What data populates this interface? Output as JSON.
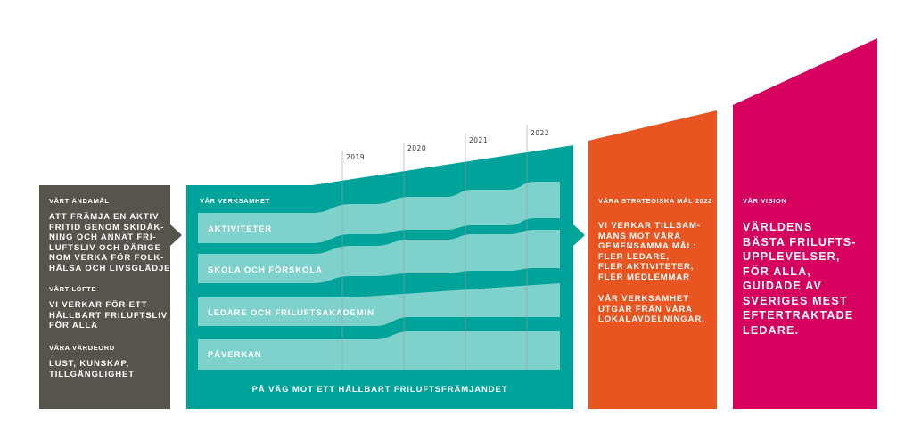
{
  "colors": {
    "dark": "#57544d",
    "teal": "#00a39a",
    "lane": "#7fd2cc",
    "orange": "#e85520",
    "magenta": "#d6005f"
  },
  "andamal": {
    "heading": "VÅRT ÄNDAMÅL",
    "text": "ATT FRÄMJA EN AKTIV\nFRITID GENOM SKIDÅK-\nNING OCH ANNAT FRI-\nLUFTSLIV OCH DÄRIGE-\nNOM VERKA FÖR FOLK-\nHÄLSA OCH LIVSGLÄDJE",
    "lofte_heading": "VÅRT LÖFTE",
    "lofte_text": "VI VERKAR FÖR ETT\nHÅLLBART FRILUFTSLIV\nFÖR ALLA",
    "vardeord_heading": "VÅRA VÄRDEORD",
    "vardeord_text": "LUST, KUNSKAP,\nTILLGÄNGLIGHET"
  },
  "verksamhet": {
    "heading": "VÅR VERKSAMHET",
    "lanes": [
      "AKTIVITETER",
      "SKOLA OCH FÖRSKOLA",
      "LEDARE OCH FRILUFTSAKADEMIN",
      "PÅVERKAN"
    ],
    "footer": "PÅ VÄG MOT ETT HÅLLBART FRILUFTSFRÄMJANDET",
    "years": [
      "2019",
      "2020",
      "2021",
      "2022"
    ]
  },
  "mal": {
    "heading": "VÅRA STRATEGISKA MÅL 2022",
    "text1": "VI VERKAR TILLSAM-\nMANS MOT VÅRA\nGEMENSAMMA MÅL:\nFLER LEDARE,\nFLER AKTIVITETER,\nFLER MEDLEMMAR",
    "text2": "VÅR VERKSAMHET\nUTGÅR FRÅN VÅRA\nLOKALAVDELNINGAR."
  },
  "vision": {
    "heading": "VÅR VISION",
    "text": "VÄRLDENS\nBÄSTA FRILUFTS-\nUPPLEVELSER,\nFÖR ALLA,\nGUIDADE AV\nSVERIGES MEST\nEFTERTRAKTADE\nLEDARE."
  }
}
